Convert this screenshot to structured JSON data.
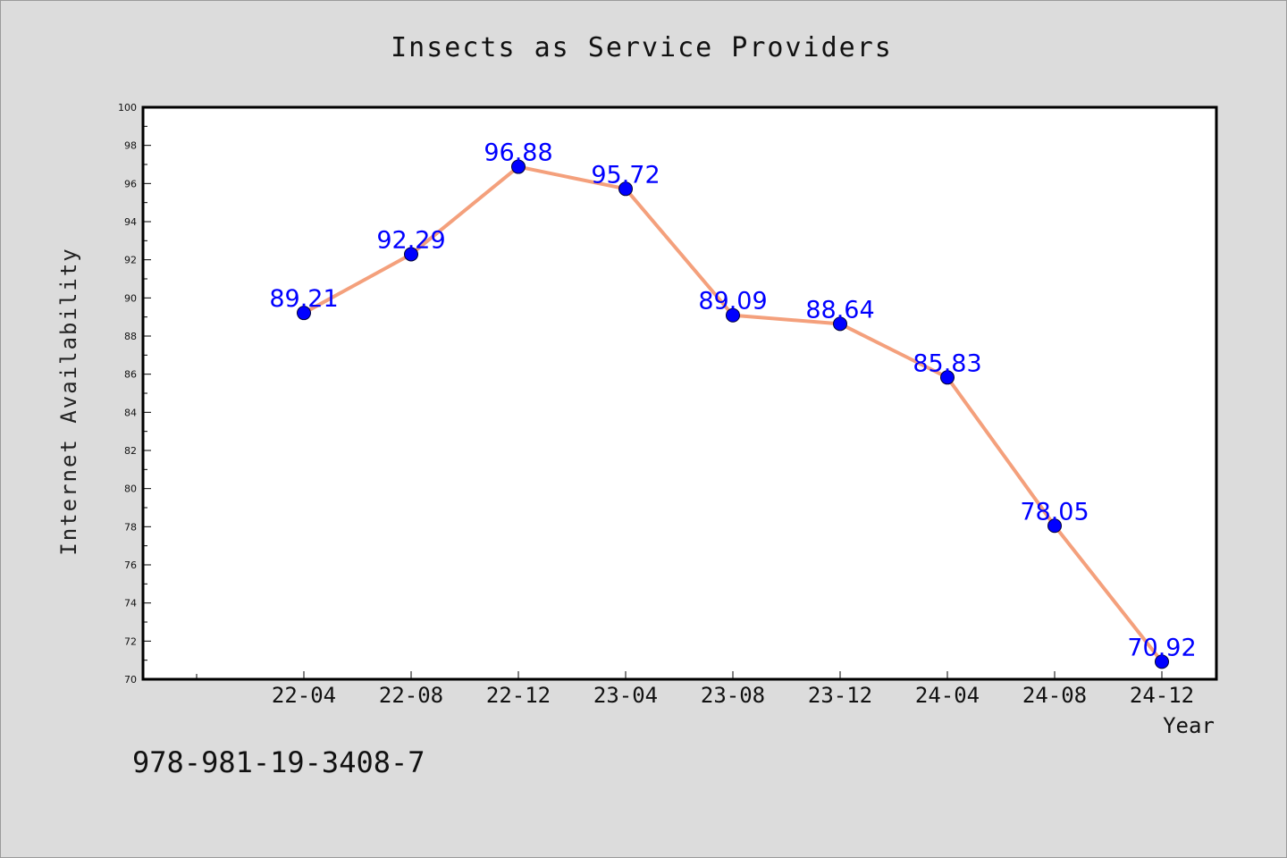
{
  "chart_data": {
    "type": "line",
    "title": "Insects as Service Providers",
    "xlabel": "Year",
    "ylabel": "Internet Availability",
    "categories": [
      "22-04",
      "22-08",
      "22-12",
      "23-04",
      "23-08",
      "23-12",
      "24-04",
      "24-08",
      "24-12"
    ],
    "series": [
      {
        "values": [
          89.21,
          92.29,
          96.88,
          95.72,
          89.09,
          88.64,
          85.83,
          78.05,
          70.92
        ]
      }
    ],
    "data_labels": [
      "89.21",
      "92.29",
      "96.88",
      "95.72",
      "89.09",
      "88.64",
      "85.83",
      "78.05",
      "70.92"
    ],
    "ylim": [
      70,
      100
    ],
    "yticks": [
      70,
      72,
      74,
      76,
      78,
      80,
      82,
      84,
      86,
      88,
      90,
      92,
      94,
      96,
      98,
      100
    ],
    "grid": false,
    "legend": "none",
    "colors": {
      "line": "#f4a07c",
      "marker": "#0000ff",
      "data_label": "#0000ff",
      "background": "#dcdcdc",
      "plot_background": "#ffffff"
    }
  },
  "footer": {
    "isbn": "978-981-19-3408-7"
  }
}
